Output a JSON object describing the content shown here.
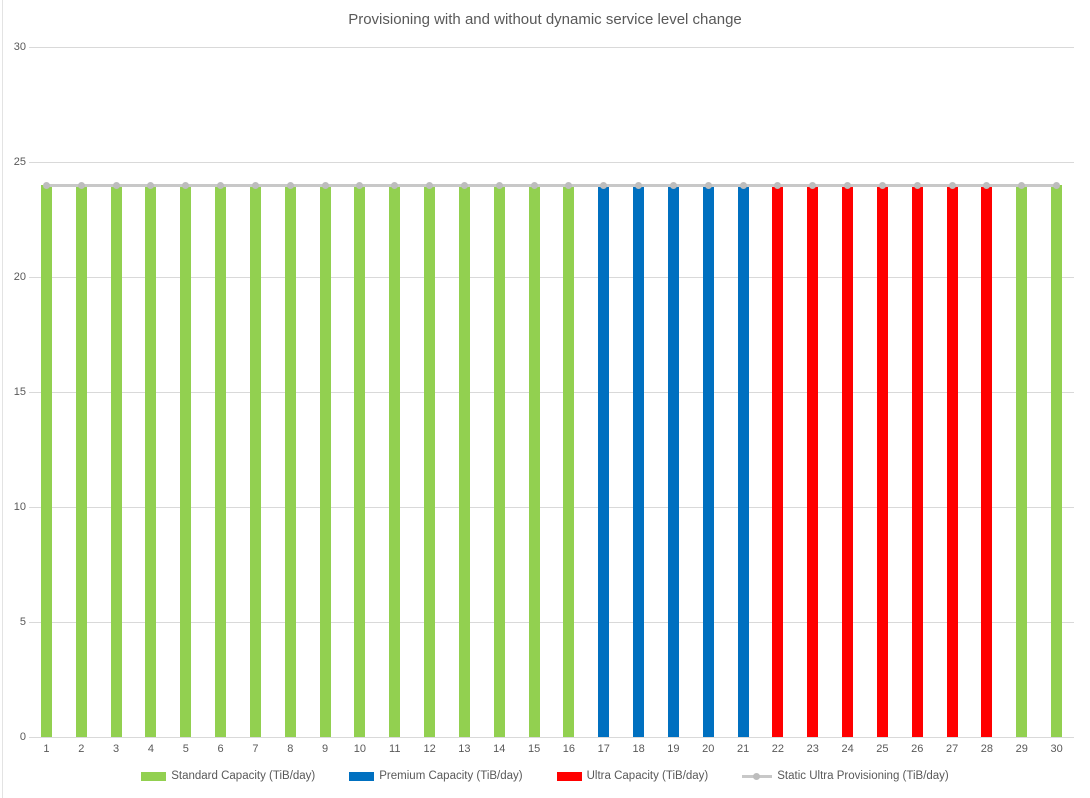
{
  "chart_data": {
    "type": "bar",
    "title": "Provisioning with and without dynamic service level change",
    "categories": [
      1,
      2,
      3,
      4,
      5,
      6,
      7,
      8,
      9,
      10,
      11,
      12,
      13,
      14,
      15,
      16,
      17,
      18,
      19,
      20,
      21,
      22,
      23,
      24,
      25,
      26,
      27,
      28,
      29,
      30
    ],
    "xlabel": "",
    "ylabel": "",
    "ylim": [
      0,
      30
    ],
    "y_tick_step": 5,
    "grid": true,
    "legend_position": "bottom",
    "colors": {
      "standard": "#92D050",
      "premium": "#0070C0",
      "ultra": "#FF0000",
      "static_line": "#C8C8C8",
      "static_marker": "#BDBDBD",
      "gridline": "#D9D9D9",
      "text": "#595959"
    },
    "series": [
      {
        "name": "Standard Capacity (TiB/day)",
        "type": "bar",
        "color": "#92D050",
        "values": [
          24,
          24,
          24,
          24,
          24,
          24,
          24,
          24,
          24,
          24,
          24,
          24,
          24,
          24,
          24,
          24,
          null,
          null,
          null,
          null,
          null,
          null,
          null,
          null,
          null,
          null,
          null,
          null,
          24,
          24
        ]
      },
      {
        "name": "Premium Capacity (TiB/day)",
        "type": "bar",
        "color": "#0070C0",
        "values": [
          null,
          null,
          null,
          null,
          null,
          null,
          null,
          null,
          null,
          null,
          null,
          null,
          null,
          null,
          null,
          null,
          24,
          24,
          24,
          24,
          24,
          null,
          null,
          null,
          null,
          null,
          null,
          null,
          null,
          null
        ]
      },
      {
        "name": "Ultra Capacity (TiB/day)",
        "type": "bar",
        "color": "#FF0000",
        "values": [
          null,
          null,
          null,
          null,
          null,
          null,
          null,
          null,
          null,
          null,
          null,
          null,
          null,
          null,
          null,
          null,
          null,
          null,
          null,
          null,
          null,
          24,
          24,
          24,
          24,
          24,
          24,
          24,
          null,
          null
        ]
      },
      {
        "name": "Static Ultra Provisioning (TiB/day)",
        "type": "line",
        "color": "#C8C8C8",
        "marker_color": "#BDBDBD",
        "values": [
          24,
          24,
          24,
          24,
          24,
          24,
          24,
          24,
          24,
          24,
          24,
          24,
          24,
          24,
          24,
          24,
          24,
          24,
          24,
          24,
          24,
          24,
          24,
          24,
          24,
          24,
          24,
          24,
          24,
          24
        ]
      }
    ]
  }
}
